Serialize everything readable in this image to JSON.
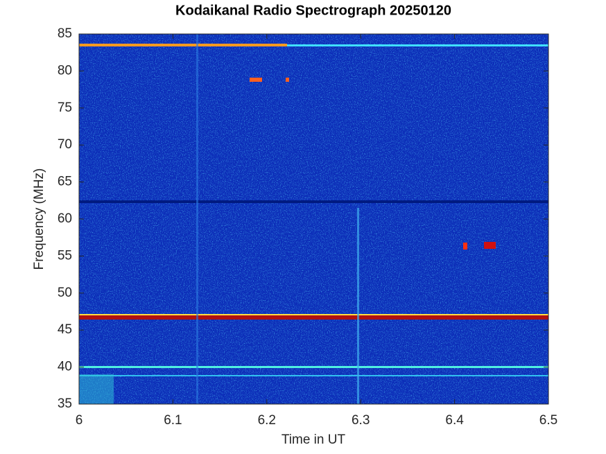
{
  "chart_data": {
    "type": "spectrogram",
    "title": "Kodaikanal Radio Spectrograph  20250120",
    "x_label": "Time in UT",
    "y_label": "Frequency (MHz)",
    "xlim": [
      6,
      6.5
    ],
    "xticks": [
      6,
      6.1,
      6.2,
      6.3,
      6.4,
      6.5
    ],
    "ylim": [
      35,
      85
    ],
    "yticks": [
      35,
      40,
      45,
      50,
      55,
      60,
      65,
      70,
      75,
      80,
      85
    ]
  }
}
